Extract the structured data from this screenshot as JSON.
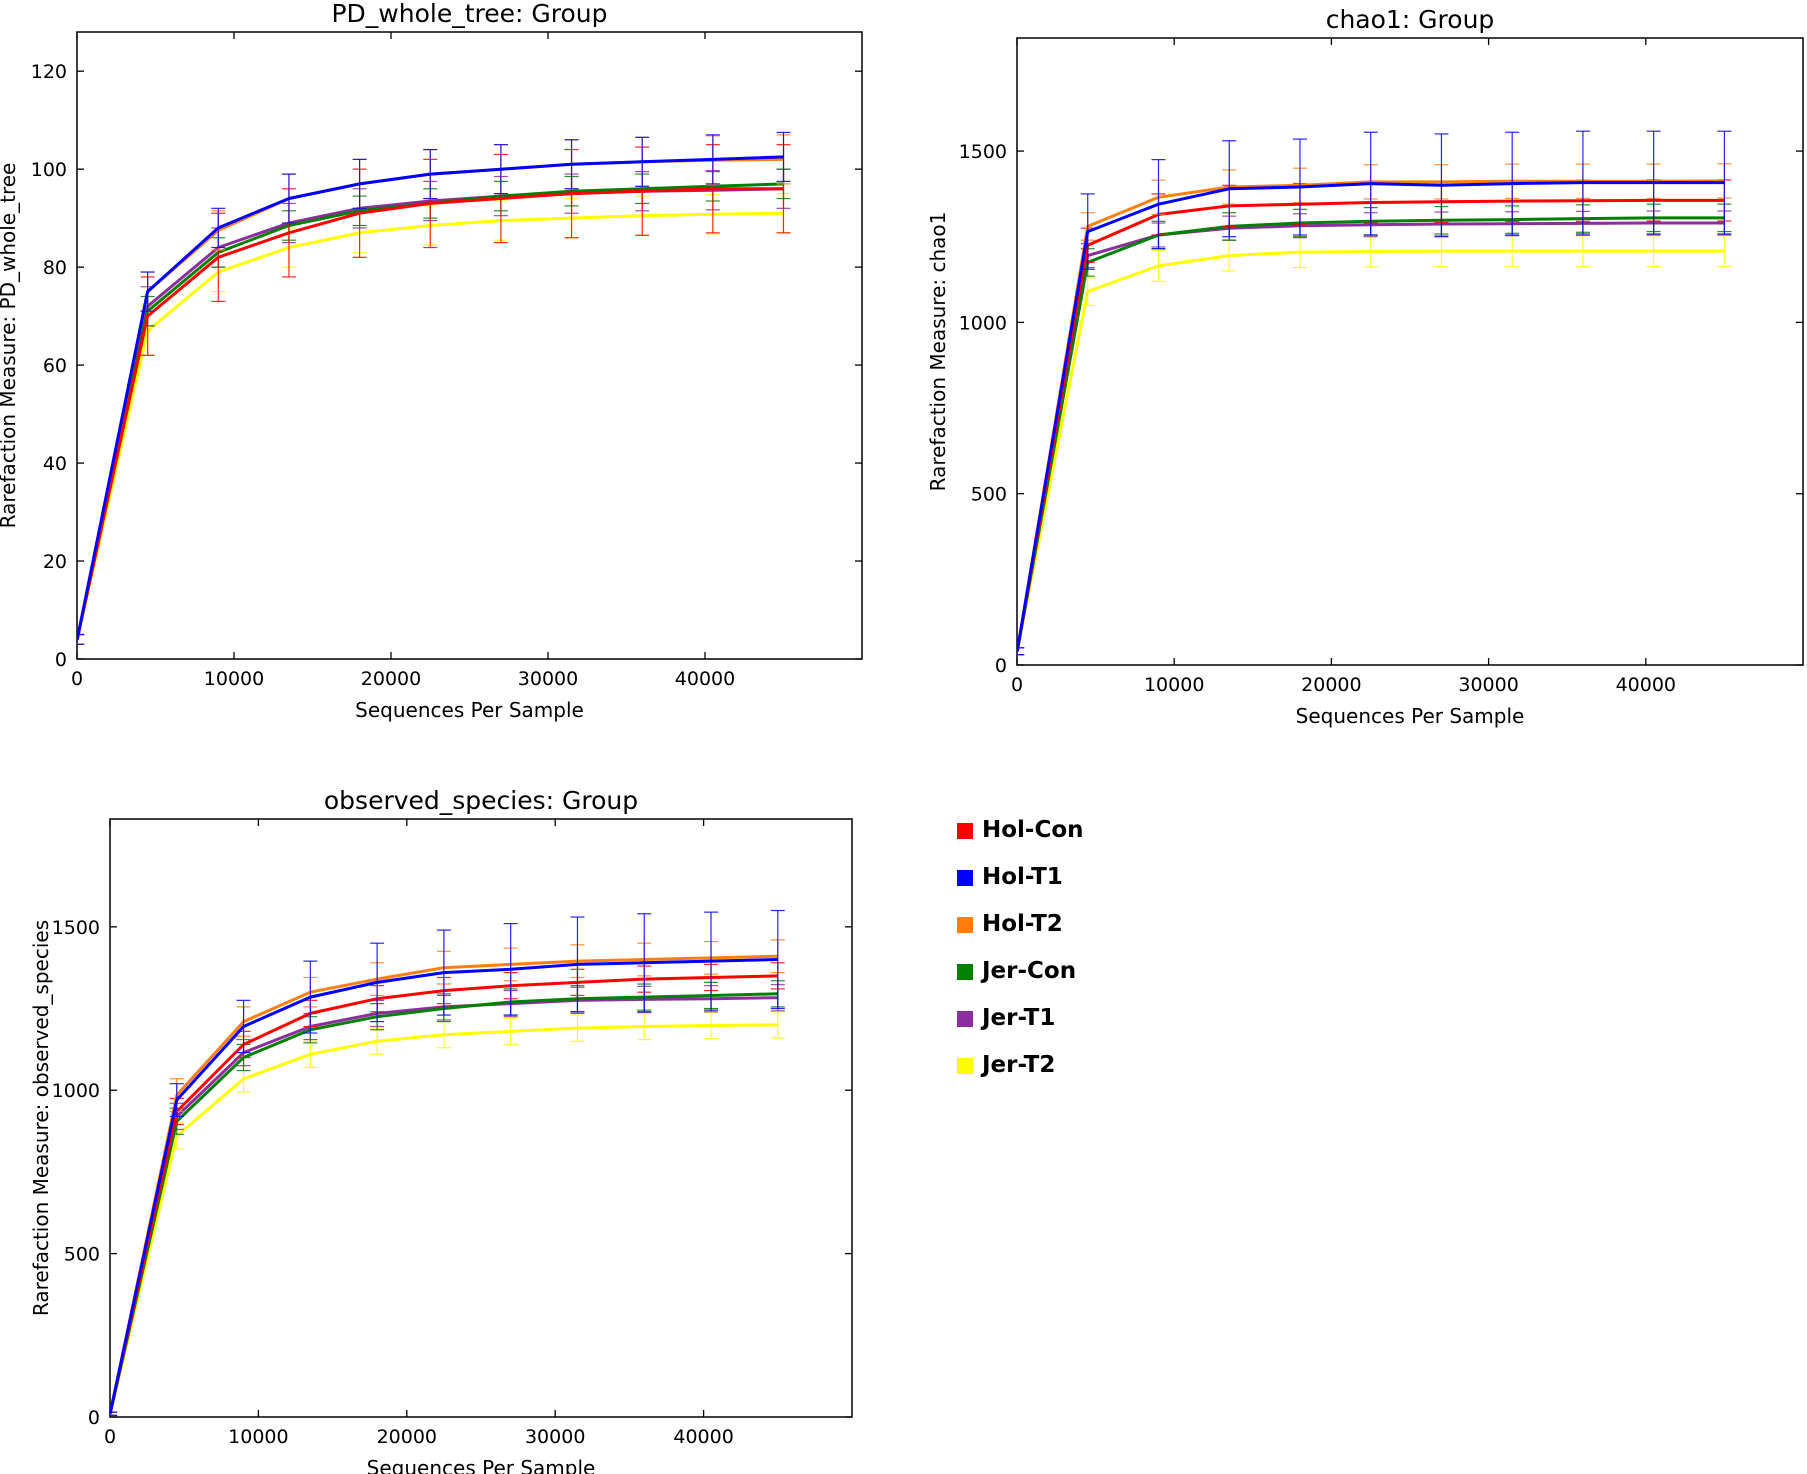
{
  "colors": {
    "Hol-Con": "#ff0000",
    "Hol-T1": "#0000ff",
    "Hol-T2": "#ff7f0e",
    "Jer-Con": "#008000",
    "Jer-T1": "#8b2f9e",
    "Jer-T2": "#ffff00"
  },
  "legend": {
    "items": [
      {
        "label": "Hol-Con",
        "color": "#ff0000"
      },
      {
        "label": "Hol-T1",
        "color": "#0000ff"
      },
      {
        "label": "Hol-T2",
        "color": "#ff7f0e"
      },
      {
        "label": "Jer-Con",
        "color": "#008000"
      },
      {
        "label": "Jer-T1",
        "color": "#8b2f9e"
      },
      {
        "label": "Jer-T2",
        "color": "#ffff00"
      }
    ]
  },
  "chart_data": [
    {
      "type": "line",
      "title": "PD_whole_tree: Group",
      "xlabel": "Sequences Per Sample",
      "ylabel": "Rarefaction Measure: PD_whole_tree",
      "xlim": [
        0,
        50000
      ],
      "ylim": [
        0,
        128
      ],
      "xticks": [
        0,
        10000,
        20000,
        30000,
        40000
      ],
      "yticks": [
        0,
        20,
        40,
        60,
        80,
        100,
        120
      ],
      "grid": false,
      "x": [
        10,
        4500,
        9000,
        13500,
        18000,
        22500,
        27000,
        31500,
        36000,
        40500,
        45000
      ],
      "series": [
        {
          "name": "Hol-Con",
          "values": [
            4,
            70,
            82,
            87,
            91,
            93,
            94,
            95,
            95.5,
            96,
            96
          ],
          "err": [
            1,
            8,
            9,
            9,
            9,
            9,
            9,
            9,
            9,
            9,
            9
          ]
        },
        {
          "name": "Hol-T1",
          "values": [
            4,
            75,
            88,
            94,
            97,
            99,
            100,
            101,
            101.5,
            102,
            102.5
          ],
          "err": [
            1,
            4,
            4,
            5,
            5,
            5,
            5,
            5,
            5,
            5,
            5
          ]
        },
        {
          "name": "Hol-T2",
          "values": [
            4,
            75,
            87.5,
            94,
            97,
            99,
            100,
            101,
            101.5,
            101.8,
            102
          ],
          "err": [
            1,
            4,
            4,
            5,
            5,
            5,
            5,
            5,
            5,
            5,
            5
          ]
        },
        {
          "name": "Jer-Con",
          "values": [
            4,
            71,
            83,
            88.5,
            91.5,
            93,
            94.5,
            95.5,
            96,
            96.5,
            97
          ],
          "err": [
            1,
            3,
            3,
            3,
            3,
            3,
            3,
            3,
            3,
            3,
            3
          ]
        },
        {
          "name": "Jer-T1",
          "values": [
            4,
            72,
            84,
            89,
            92,
            93.5,
            94.5,
            95,
            95.5,
            95.7,
            96
          ],
          "err": [
            1,
            4,
            4,
            4,
            4,
            4,
            4,
            4,
            4,
            4,
            4
          ]
        },
        {
          "name": "Jer-T2",
          "values": [
            4,
            67,
            79,
            84,
            87,
            88.5,
            89.5,
            90,
            90.5,
            90.8,
            91
          ],
          "err": [
            1,
            5,
            4,
            4,
            4,
            4,
            4,
            4,
            4,
            4,
            4
          ]
        }
      ]
    },
    {
      "type": "line",
      "title": "chao1: Group",
      "xlabel": "Sequences Per Sample",
      "ylabel": "Rarefaction Measure: chao1",
      "xlim": [
        0,
        50000
      ],
      "ylim": [
        0,
        1830
      ],
      "xticks": [
        0,
        10000,
        20000,
        30000,
        40000
      ],
      "yticks": [
        0,
        500,
        1000,
        1500
      ],
      "grid": false,
      "x": [
        10,
        4500,
        9000,
        13500,
        18000,
        22500,
        27000,
        31500,
        36000,
        40500,
        45000
      ],
      "series": [
        {
          "name": "Hol-Con",
          "values": [
            40,
            1225,
            1315,
            1340,
            1345,
            1350,
            1352,
            1354,
            1355,
            1356,
            1356
          ],
          "err": [
            10,
            50,
            60,
            60,
            60,
            60,
            60,
            60,
            60,
            60,
            60
          ]
        },
        {
          "name": "Hol-T1",
          "values": [
            40,
            1265,
            1345,
            1390,
            1395,
            1405,
            1400,
            1405,
            1408,
            1408,
            1408
          ],
          "err": [
            10,
            110,
            130,
            140,
            140,
            150,
            150,
            150,
            150,
            150,
            150
          ]
        },
        {
          "name": "Hol-T2",
          "values": [
            40,
            1280,
            1365,
            1395,
            1400,
            1410,
            1410,
            1412,
            1412,
            1412,
            1413
          ],
          "err": [
            10,
            40,
            50,
            50,
            50,
            50,
            50,
            50,
            50,
            50,
            50
          ]
        },
        {
          "name": "Jer-Con",
          "values": [
            40,
            1175,
            1255,
            1280,
            1290,
            1295,
            1298,
            1300,
            1303,
            1305,
            1305
          ],
          "err": [
            10,
            40,
            40,
            40,
            40,
            40,
            40,
            40,
            40,
            40,
            40
          ]
        },
        {
          "name": "Jer-T1",
          "values": [
            40,
            1195,
            1255,
            1275,
            1282,
            1285,
            1287,
            1288,
            1289,
            1290,
            1290
          ],
          "err": [
            10,
            35,
            35,
            35,
            35,
            35,
            35,
            35,
            35,
            35,
            35
          ]
        },
        {
          "name": "Jer-T2",
          "values": [
            40,
            1090,
            1165,
            1195,
            1205,
            1207,
            1208,
            1208,
            1208,
            1208,
            1208
          ],
          "err": [
            10,
            40,
            45,
            45,
            45,
            45,
            45,
            45,
            45,
            45,
            45
          ]
        }
      ]
    },
    {
      "type": "line",
      "title": "observed_species: Group",
      "xlabel": "Sequences Per Sample",
      "ylabel": "Rarefaction Measure: observed_species",
      "xlim": [
        0,
        50000
      ],
      "ylim": [
        0,
        1830
      ],
      "xticks": [
        0,
        10000,
        20000,
        30000,
        40000
      ],
      "yticks": [
        0,
        500,
        1000,
        1500
      ],
      "grid": false,
      "x": [
        10,
        4500,
        9000,
        13500,
        18000,
        22500,
        27000,
        31500,
        36000,
        40500,
        45000
      ],
      "series": [
        {
          "name": "Hol-Con",
          "values": [
            10,
            935,
            1140,
            1235,
            1280,
            1305,
            1320,
            1330,
            1340,
            1345,
            1350
          ],
          "err": [
            5,
            40,
            40,
            40,
            40,
            40,
            40,
            40,
            40,
            40,
            40
          ]
        },
        {
          "name": "Hol-T1",
          "values": [
            10,
            970,
            1195,
            1285,
            1330,
            1360,
            1370,
            1385,
            1390,
            1395,
            1400
          ],
          "err": [
            5,
            50,
            80,
            110,
            120,
            130,
            140,
            145,
            150,
            150,
            150
          ]
        },
        {
          "name": "Hol-T2",
          "values": [
            10,
            985,
            1210,
            1300,
            1340,
            1375,
            1385,
            1395,
            1400,
            1405,
            1410
          ],
          "err": [
            5,
            50,
            45,
            45,
            50,
            50,
            50,
            50,
            50,
            50,
            50
          ]
        },
        {
          "name": "Jer-Con",
          "values": [
            10,
            905,
            1100,
            1185,
            1225,
            1250,
            1270,
            1280,
            1285,
            1290,
            1295
          ],
          "err": [
            5,
            40,
            40,
            40,
            40,
            40,
            40,
            40,
            40,
            40,
            40
          ]
        },
        {
          "name": "Jer-T1",
          "values": [
            10,
            920,
            1115,
            1195,
            1235,
            1255,
            1265,
            1275,
            1278,
            1280,
            1283
          ],
          "err": [
            5,
            40,
            40,
            40,
            40,
            40,
            40,
            40,
            40,
            40,
            40
          ]
        },
        {
          "name": "Jer-T2",
          "values": [
            10,
            860,
            1035,
            1110,
            1150,
            1170,
            1180,
            1190,
            1195,
            1198,
            1200
          ],
          "err": [
            5,
            40,
            40,
            40,
            40,
            40,
            40,
            40,
            40,
            40,
            40
          ]
        }
      ]
    }
  ]
}
